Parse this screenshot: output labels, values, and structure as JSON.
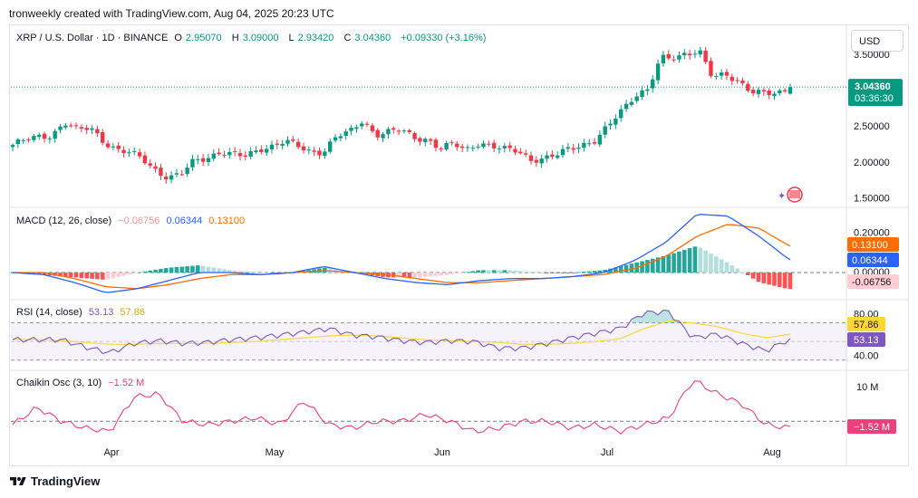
{
  "caption": "tronweekly created with TradingView.com, Aug 04, 2025 20:23 UTC",
  "footer_brand": "TradingView",
  "currency_button": "USD",
  "symbol_legend": {
    "symbol": "XRP / U.S. Dollar · 1D · BINANCE",
    "o_label": "O",
    "o": "2.95070",
    "h_label": "H",
    "h": "3.09000",
    "l_label": "L",
    "l": "2.93420",
    "c_label": "C",
    "c": "3.04360",
    "change": "+0.09330 (+3.16%)"
  },
  "macd_legend": {
    "name": "MACD (12, 26, close)",
    "hist": "−0.06756",
    "macd": "0.06344",
    "signal": "0.13100"
  },
  "rsi_legend": {
    "name": "RSI (14, close)",
    "rsi": "53.13",
    "ma": "57.86"
  },
  "chaikin_legend": {
    "name": "Chaikin Osc (3, 10)",
    "value": "−1.52 M"
  },
  "price_label": {
    "price": "3.04360",
    "countdown": "03:36:30"
  },
  "macd_labels": {
    "signal": "0.13100",
    "macd": "0.06344",
    "hist": "-0.06756"
  },
  "rsi_labels": {
    "ma": "57.86",
    "rsi": "53.13"
  },
  "chaikin_label": "−1.52 M",
  "colors": {
    "up": "#089981",
    "down": "#f23645",
    "macd": "#2962ff",
    "signal": "#ff6d00",
    "rsi": "#7e57c2",
    "rsi_ma": "#fdd835",
    "chaikin": "#ec407a",
    "hist_up_strong": "#26a69a",
    "hist_up_weak": "#b2dfdb",
    "hist_down_strong": "#ff5252",
    "hist_down_weak": "#ffcdd2"
  },
  "chart_data": {
    "type": "candlestick",
    "x_ticks": [
      "Apr",
      "May",
      "Jun",
      "Jul",
      "Aug"
    ],
    "price_axis": {
      "ticks": [
        "3.50000",
        "2.50000",
        "2.00000",
        "1.50000"
      ],
      "range": [
        1.42,
        3.75
      ],
      "scale": "linear"
    },
    "price_series": [
      {
        "day": "Mar 10",
        "close": 2.24
      },
      {
        "day": "Mar 13",
        "close": 2.3
      },
      {
        "day": "Mar 16",
        "close": 2.35
      },
      {
        "day": "Mar 18",
        "close": 2.38
      },
      {
        "day": "Mar 19",
        "close": 2.55
      },
      {
        "day": "Mar 21",
        "close": 2.43
      },
      {
        "day": "Mar 24",
        "close": 2.48
      },
      {
        "day": "Mar 27",
        "close": 2.3
      },
      {
        "day": "Mar 30",
        "close": 2.17
      },
      {
        "day": "Apr 01",
        "close": 2.12
      },
      {
        "day": "Apr 03",
        "close": 2.05
      },
      {
        "day": "Apr 06",
        "close": 1.9
      },
      {
        "day": "Apr 07",
        "close": 1.78
      },
      {
        "day": "Apr 08",
        "close": 1.82
      },
      {
        "day": "Apr 09",
        "close": 2.02
      },
      {
        "day": "Apr 11",
        "close": 2.07
      },
      {
        "day": "Apr 14",
        "close": 2.14
      },
      {
        "day": "Apr 17",
        "close": 2.09
      },
      {
        "day": "Apr 21",
        "close": 2.08
      },
      {
        "day": "Apr 22",
        "close": 2.19
      },
      {
        "day": "Apr 25",
        "close": 2.22
      },
      {
        "day": "Apr 28",
        "close": 2.28
      },
      {
        "day": "May 01",
        "close": 2.22
      },
      {
        "day": "May 04",
        "close": 2.15
      },
      {
        "day": "May 07",
        "close": 2.15
      },
      {
        "day": "May 08",
        "close": 2.35
      },
      {
        "day": "May 10",
        "close": 2.41
      },
      {
        "day": "May 12",
        "close": 2.59
      },
      {
        "day": "May 15",
        "close": 2.38
      },
      {
        "day": "May 18",
        "close": 2.41
      },
      {
        "day": "May 21",
        "close": 2.44
      },
      {
        "day": "May 24",
        "close": 2.35
      },
      {
        "day": "May 27",
        "close": 2.32
      },
      {
        "day": "May 30",
        "close": 2.17
      },
      {
        "day": "Jun 03",
        "close": 2.25
      },
      {
        "day": "Jun 06",
        "close": 2.18
      },
      {
        "day": "Jun 09",
        "close": 2.28
      },
      {
        "day": "Jun 12",
        "close": 2.2
      },
      {
        "day": "Jun 15",
        "close": 2.17
      },
      {
        "day": "Jun 18",
        "close": 2.17
      },
      {
        "day": "Jun 21",
        "close": 2.04
      },
      {
        "day": "Jun 22",
        "close": 2.03
      },
      {
        "day": "Jun 25",
        "close": 2.09
      },
      {
        "day": "Jun 29",
        "close": 2.21
      },
      {
        "day": "Jul 02",
        "close": 2.25
      },
      {
        "day": "Jul 06",
        "close": 2.29
      },
      {
        "day": "Jul 09",
        "close": 2.5
      },
      {
        "day": "Jul 11",
        "close": 2.73
      },
      {
        "day": "Jul 14",
        "close": 2.94
      },
      {
        "day": "Jul 16",
        "close": 3.0
      },
      {
        "day": "Jul 17",
        "close": 3.43
      },
      {
        "day": "Jul 18",
        "close": 3.45
      },
      {
        "day": "Jul 21",
        "close": 3.53
      },
      {
        "day": "Jul 22",
        "close": 3.54
      },
      {
        "day": "Jul 24",
        "close": 3.16
      },
      {
        "day": "Jul 27",
        "close": 3.22
      },
      {
        "day": "Jul 28",
        "close": 3.14
      },
      {
        "day": "Jul 31",
        "close": 2.98
      },
      {
        "day": "Aug 01",
        "close": 2.94
      },
      {
        "day": "Aug 03",
        "close": 2.95
      },
      {
        "day": "Aug 04",
        "close": 3.04
      }
    ],
    "last": {
      "open": 2.9507,
      "high": 3.09,
      "low": 2.9342,
      "close": 3.0436
    },
    "macd": {
      "axis_ticks": [
        "0.00000"
      ],
      "values": [
        0.0,
        -0.01,
        -0.05,
        -0.1,
        -0.08,
        -0.04,
        0.0,
        0.0,
        -0.01,
        0.0,
        0.03,
        0.0,
        -0.03,
        -0.05,
        -0.06,
        -0.04,
        -0.03,
        -0.03,
        -0.02,
        0.0,
        0.06,
        0.15,
        0.29,
        0.28,
        0.18,
        0.06
      ],
      "signal": [
        0.0,
        0.0,
        -0.03,
        -0.07,
        -0.08,
        -0.06,
        -0.03,
        -0.01,
        -0.01,
        0.0,
        0.01,
        0.0,
        -0.01,
        -0.03,
        -0.05,
        -0.05,
        -0.04,
        -0.03,
        -0.02,
        -0.01,
        0.02,
        0.08,
        0.18,
        0.24,
        0.22,
        0.13
      ],
      "last": {
        "macd": 0.06344,
        "signal": 0.131,
        "hist": -0.06756
      }
    },
    "rsi": {
      "axis_ticks": [
        "80.00",
        "40.00"
      ],
      "band": [
        30,
        70
      ],
      "values": [
        52,
        52,
        52,
        44,
        38,
        48,
        51,
        48,
        49,
        52,
        54,
        57,
        60,
        64,
        57,
        55,
        51,
        49,
        51,
        50,
        43,
        43,
        48,
        54,
        59,
        64,
        81,
        82,
        54,
        58,
        48,
        40,
        53
      ],
      "ma": [
        52,
        52,
        51,
        49,
        47,
        47,
        48,
        48,
        48,
        49,
        50,
        52,
        54,
        56,
        57,
        56,
        54,
        52,
        51,
        50,
        49,
        47,
        47,
        48,
        50,
        53,
        64,
        72,
        70,
        66,
        59,
        54,
        58
      ],
      "last": {
        "rsi": 53.13,
        "ma": 57.86
      }
    },
    "chaikin": {
      "axis_ticks": [
        "10 M"
      ],
      "values": [
        -1,
        4,
        0,
        -2,
        -3,
        7,
        8,
        0,
        -1,
        0,
        1,
        -1,
        6,
        -1,
        -2,
        0,
        0,
        2,
        0,
        -3,
        -2,
        0,
        0,
        -2,
        -1,
        -3,
        -1,
        1,
        12,
        8,
        5,
        -1,
        -2
      ],
      "unit": "M",
      "last": -1.52
    }
  }
}
